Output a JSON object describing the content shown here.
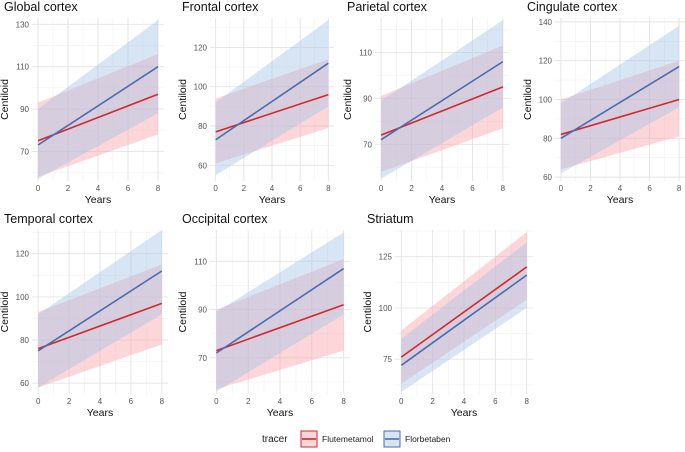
{
  "chart_data": {
    "type": "line",
    "x_label": "Years",
    "y_label": "Centiloid",
    "colors": {
      "flutemetamol": "#d62728",
      "florbetaben": "#4a6bb0",
      "flutemetamol_band": "#f8a3a8",
      "florbetaben_band": "#a9c6e8"
    },
    "legend": {
      "title": "tracer",
      "entries": [
        "Flutemetamol",
        "Florbetaben"
      ]
    },
    "panels": [
      {
        "title": "Global cortex",
        "x_ticks": [
          0,
          2,
          4,
          6,
          8
        ],
        "y_ticks": [
          70,
          90,
          110,
          130
        ],
        "xlim": [
          -0.4,
          8.4
        ],
        "ylim": [
          56,
          133
        ],
        "series": [
          {
            "name": "Flutemetamol",
            "x": [
              0,
              8
            ],
            "y": [
              75,
              97
            ],
            "lower": [
              58,
              78
            ],
            "upper": [
              93,
              116
            ]
          },
          {
            "name": "Florbetaben",
            "x": [
              0,
              8
            ],
            "y": [
              73,
              110
            ],
            "lower": [
              57,
              88
            ],
            "upper": [
              90,
              132
            ]
          }
        ]
      },
      {
        "title": "Frontal cortex",
        "x_ticks": [
          0,
          2,
          4,
          6,
          8
        ],
        "y_ticks": [
          60,
          80,
          100,
          120
        ],
        "xlim": [
          -0.4,
          8.4
        ],
        "ylim": [
          52,
          135
        ],
        "series": [
          {
            "name": "Flutemetamol",
            "x": [
              0,
              8
            ],
            "y": [
              77,
              96
            ],
            "lower": [
              61,
              79
            ],
            "upper": [
              94,
              114
            ]
          },
          {
            "name": "Florbetaben",
            "x": [
              0,
              8
            ],
            "y": [
              73,
              112
            ],
            "lower": [
              55,
              90
            ],
            "upper": [
              92,
              134
            ]
          }
        ]
      },
      {
        "title": "Parietal cortex",
        "x_ticks": [
          0,
          2,
          4,
          6,
          8
        ],
        "y_ticks": [
          70,
          90,
          110
        ],
        "xlim": [
          -0.4,
          8.4
        ],
        "ylim": [
          54,
          125
        ],
        "series": [
          {
            "name": "Flutemetamol",
            "x": [
              0,
              8
            ],
            "y": [
              74,
              95
            ],
            "lower": [
              58,
              77
            ],
            "upper": [
              91,
              113
            ]
          },
          {
            "name": "Florbetaben",
            "x": [
              0,
              8
            ],
            "y": [
              72,
              106
            ],
            "lower": [
              55,
              86
            ],
            "upper": [
              89,
              124
            ]
          }
        ]
      },
      {
        "title": "Cingulate cortex",
        "x_ticks": [
          0,
          2,
          4,
          6,
          8
        ],
        "y_ticks": [
          60,
          80,
          100,
          120,
          140
        ],
        "xlim": [
          -0.4,
          8.4
        ],
        "ylim": [
          58,
          142
        ],
        "series": [
          {
            "name": "Flutemetamol",
            "x": [
              0,
              8
            ],
            "y": [
              82,
              100
            ],
            "lower": [
              64,
              81
            ],
            "upper": [
              100,
              120
            ]
          },
          {
            "name": "Florbetaben",
            "x": [
              0,
              8
            ],
            "y": [
              80,
              117
            ],
            "lower": [
              62,
              96
            ],
            "upper": [
              98,
              138
            ]
          }
        ]
      },
      {
        "title": "Temporal cortex",
        "x_ticks": [
          0,
          2,
          4,
          6,
          8
        ],
        "y_ticks": [
          60,
          80,
          100,
          120
        ],
        "xlim": [
          -0.4,
          8.4
        ],
        "ylim": [
          55,
          131
        ],
        "series": [
          {
            "name": "Flutemetamol",
            "x": [
              0,
              8
            ],
            "y": [
              76,
              97
            ],
            "lower": [
              58,
              78
            ],
            "upper": [
              93,
              115
            ]
          },
          {
            "name": "Florbetaben",
            "x": [
              0,
              8
            ],
            "y": [
              75,
              112
            ],
            "lower": [
              58,
              92
            ],
            "upper": [
              92,
              131
            ]
          }
        ]
      },
      {
        "title": "Occipital cortex",
        "x_ticks": [
          0,
          2,
          4,
          6,
          8
        ],
        "y_ticks": [
          70,
          90,
          110
        ],
        "xlim": [
          -0.4,
          8.4
        ],
        "ylim": [
          55,
          123
        ],
        "series": [
          {
            "name": "Flutemetamol",
            "x": [
              0,
              8
            ],
            "y": [
              73,
              92
            ],
            "lower": [
              57,
              73
            ],
            "upper": [
              90,
              111
            ]
          },
          {
            "name": "Florbetaben",
            "x": [
              0,
              8
            ],
            "y": [
              72,
              107
            ],
            "lower": [
              56,
              88
            ],
            "upper": [
              89,
              122
            ]
          }
        ]
      },
      {
        "title": "Striatum",
        "x_ticks": [
          0,
          2,
          4,
          6,
          8
        ],
        "y_ticks": [
          75,
          100,
          125
        ],
        "xlim": [
          -0.4,
          8.4
        ],
        "ylim": [
          58,
          138
        ],
        "series": [
          {
            "name": "Flutemetamol",
            "x": [
              0,
              8
            ],
            "y": [
              76,
              120
            ],
            "lower": [
              63,
              104
            ],
            "upper": [
              89,
              137
            ]
          },
          {
            "name": "Florbetaben",
            "x": [
              0,
              8
            ],
            "y": [
              72,
              116
            ],
            "lower": [
              59,
              100
            ],
            "upper": [
              85,
              132
            ]
          }
        ]
      }
    ]
  }
}
